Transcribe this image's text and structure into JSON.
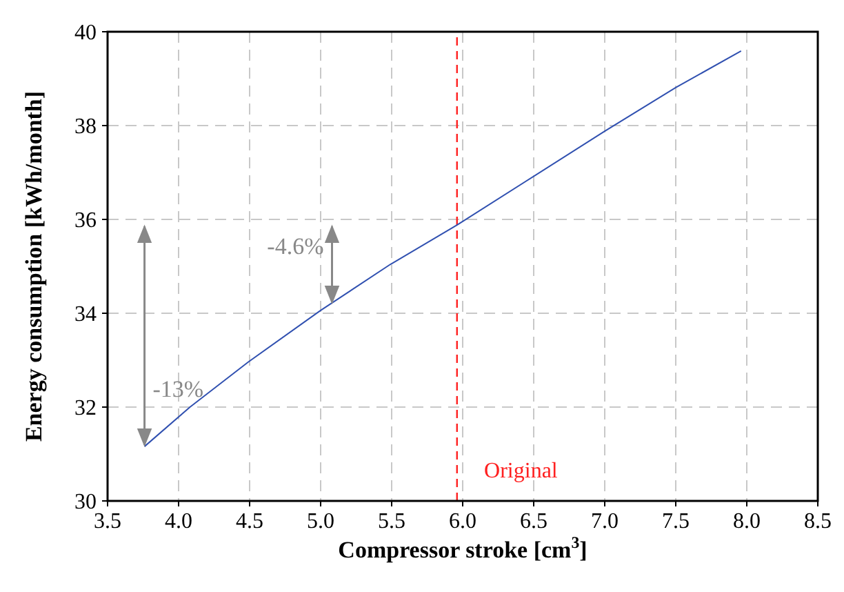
{
  "chart_data": {
    "type": "line",
    "xlabel": "Compressor stroke [cm$^{3}$]",
    "ylabel": "Energy consumption [kWh/month]",
    "x": [
      3.76,
      4.08,
      4.49,
      5.0,
      5.49,
      5.96,
      7.0,
      7.5,
      7.96
    ],
    "series": [
      {
        "color": "#3050b0",
        "values": [
          31.16,
          32.0,
          32.96,
          34.06,
          35.04,
          35.88,
          37.88,
          38.81,
          39.59
        ]
      }
    ],
    "xlim": [
      3.5,
      8.5
    ],
    "xticks": [
      {
        "value": 3.5,
        "label": "3.5"
      },
      {
        "value": 4,
        "label": "4.0"
      },
      {
        "value": 4.5,
        "label": "4.5"
      },
      {
        "value": 5,
        "label": "5.0"
      },
      {
        "value": 5.5,
        "label": "5.5"
      },
      {
        "value": 6,
        "label": "6.0"
      },
      {
        "value": 6.5,
        "label": "6.5"
      },
      {
        "value": 7,
        "label": "7.0"
      },
      {
        "value": 7.5,
        "label": "7.5"
      },
      {
        "value": 8,
        "label": "8.0"
      },
      {
        "value": 8.5,
        "label": "8.5"
      }
    ],
    "ylim": [
      30,
      40
    ],
    "yticks": [
      30,
      32,
      34,
      36,
      38,
      40
    ],
    "ref_lines": [
      {
        "axis": "x",
        "value": 5.96,
        "label": "Original",
        "color": "#ff2020",
        "line_style": "dashed"
      }
    ],
    "annotations": [
      {
        "text": "-13%",
        "x": 3.76,
        "y": 31.16
      },
      {
        "text": "-4.6%",
        "x": 5.08,
        "y": 34.2
      }
    ],
    "grid": true,
    "legend": false,
    "marker": "none",
    "line_style": "solid"
  }
}
